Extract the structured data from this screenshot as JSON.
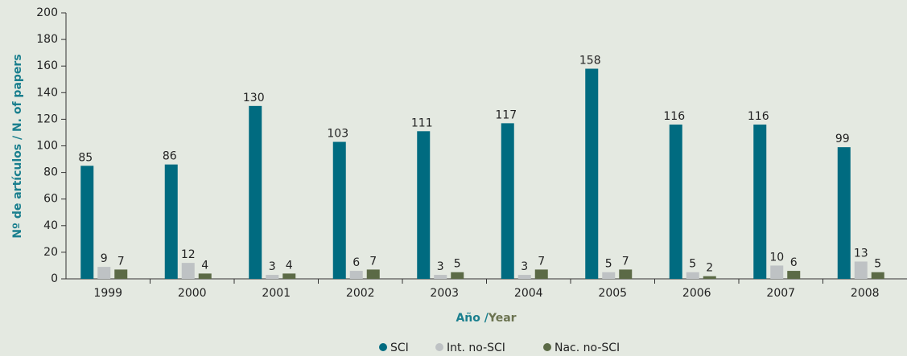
{
  "chart_data": {
    "type": "bar",
    "categories": [
      "1999",
      "2000",
      "2001",
      "2002",
      "2003",
      "2004",
      "2005",
      "2006",
      "2007",
      "2008"
    ],
    "series": [
      {
        "name": "SCI",
        "color": "#006b80",
        "values": [
          85,
          86,
          130,
          103,
          111,
          117,
          158,
          116,
          116,
          99
        ]
      },
      {
        "name": "Int. no-SCI",
        "color": "#bec2c4",
        "values": [
          9,
          12,
          3,
          6,
          3,
          3,
          5,
          5,
          10,
          13
        ]
      },
      {
        "name": "Nac. no-SCI",
        "color": "#5b6a46",
        "values": [
          7,
          4,
          4,
          7,
          5,
          7,
          7,
          2,
          6,
          5
        ]
      }
    ],
    "y_label": "Nº de artículos / N. of papers",
    "x_label": [
      "Año /",
      "Year"
    ],
    "ylim": [
      0,
      200
    ],
    "yticks": [
      0,
      20,
      40,
      60,
      80,
      100,
      120,
      140,
      160,
      180,
      200
    ],
    "legend": "bottom"
  }
}
